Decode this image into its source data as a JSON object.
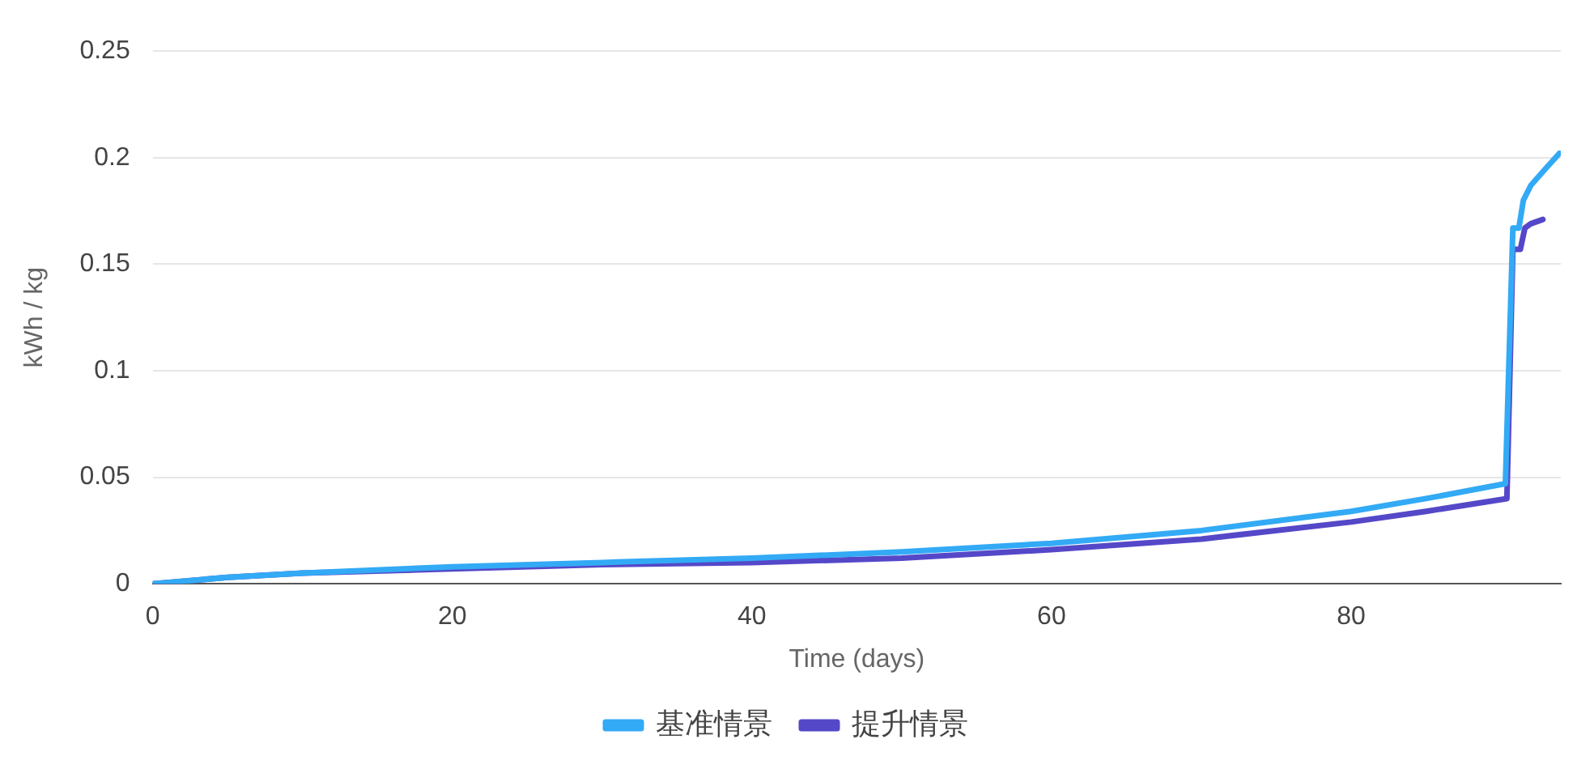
{
  "chart_data": {
    "type": "line",
    "xlabel": "Time (days)",
    "ylabel": "kWh / kg",
    "xlim": [
      0,
      94
    ],
    "ylim": [
      0,
      0.25
    ],
    "xticks": [
      0,
      20,
      40,
      60,
      80
    ],
    "yticks": [
      0,
      0.05,
      0.1,
      0.15,
      0.2,
      0.25
    ],
    "grid": "y",
    "legend": "bottom",
    "marker": "none",
    "line_style": "solid",
    "series": [
      {
        "name": "基准情景",
        "color": "#33aaf5",
        "x": [
          0,
          5,
          10,
          20,
          30,
          40,
          50,
          60,
          70,
          80,
          85,
          90.3,
          90.8,
          91.2,
          91.5,
          92,
          93,
          93.9
        ],
        "values": [
          0,
          0.003,
          0.005,
          0.008,
          0.01,
          0.012,
          0.015,
          0.019,
          0.025,
          0.034,
          0.04,
          0.047,
          0.167,
          0.167,
          0.18,
          0.187,
          0.195,
          0.202
        ]
      },
      {
        "name": "提升情景",
        "color": "#5548c8",
        "x": [
          0,
          5,
          10,
          20,
          30,
          40,
          50,
          60,
          70,
          80,
          85,
          90.4,
          90.8,
          91.3,
          91.6,
          92,
          92.8
        ],
        "values": [
          0,
          0.003,
          0.005,
          0.007,
          0.009,
          0.01,
          0.012,
          0.016,
          0.021,
          0.029,
          0.034,
          0.04,
          0.157,
          0.157,
          0.167,
          0.169,
          0.171
        ]
      }
    ]
  }
}
